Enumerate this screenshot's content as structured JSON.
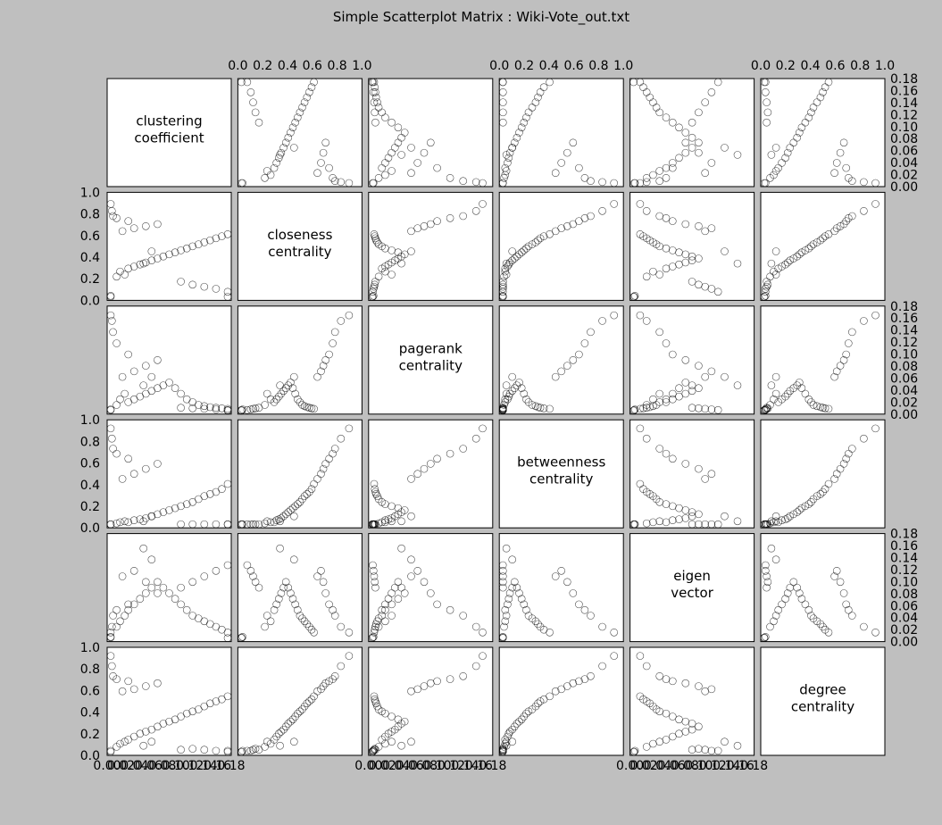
{
  "chart_data": {
    "type": "scatter",
    "layout": "scatterplot-matrix",
    "title": "Simple Scatterplot Matrix : Wiki-Vote_out.txt",
    "variables": [
      {
        "key": "clustering",
        "label_lines": [
          "clustering",
          "coefficient"
        ],
        "range": [
          0.0,
          1.0
        ]
      },
      {
        "key": "closeness",
        "label_lines": [
          "closeness",
          "centrality"
        ],
        "range": [
          0.0,
          1.0
        ]
      },
      {
        "key": "pagerank",
        "label_lines": [
          "pagerank",
          "centrality"
        ],
        "range": [
          0.0,
          0.18
        ]
      },
      {
        "key": "betweenness",
        "label_lines": [
          "betweenness",
          "centrality"
        ],
        "range": [
          0.0,
          1.0
        ]
      },
      {
        "key": "eigen",
        "label_lines": [
          "eigen",
          "vector"
        ],
        "range": [
          0.0,
          0.18
        ]
      },
      {
        "key": "degree",
        "label_lines": [
          "degree",
          "centrality"
        ],
        "range": [
          0.0,
          1.0
        ]
      }
    ],
    "tick_labels": {
      "unit": [
        "0.0",
        "0.2",
        "0.4",
        "0.6",
        "0.8",
        "1.0"
      ],
      "unit_top": [
        "0.0",
        "0.2",
        "0.4",
        "0.6",
        "0.8",
        "1.0"
      ],
      "small": [
        "0.00",
        "0.02",
        "0.04",
        "0.06",
        "0.08",
        "0.10",
        "0.12",
        "0.14",
        "0.16",
        "0.18"
      ],
      "small_bottom": [
        "0.00",
        "0.02",
        "0.04",
        "0.06",
        "0.08",
        "0.10",
        "0.12",
        "0.14",
        "0.16",
        "0.18"
      ]
    },
    "marker": "open-circle",
    "grid": false,
    "points": [
      [
        0.05,
        0.2,
        0.01,
        0.01,
        0.02,
        0.05
      ],
      [
        0.08,
        0.25,
        0.02,
        0.02,
        0.03,
        0.08
      ],
      [
        0.12,
        0.22,
        0.03,
        0.03,
        0.04,
        0.1
      ],
      [
        0.15,
        0.28,
        0.015,
        0.02,
        0.05,
        0.12
      ],
      [
        0.2,
        0.3,
        0.02,
        0.04,
        0.06,
        0.15
      ],
      [
        0.25,
        0.32,
        0.025,
        0.05,
        0.07,
        0.18
      ],
      [
        0.3,
        0.34,
        0.03,
        0.06,
        0.08,
        0.2
      ],
      [
        0.35,
        0.36,
        0.035,
        0.08,
        0.09,
        0.22
      ],
      [
        0.4,
        0.38,
        0.04,
        0.1,
        0.1,
        0.25
      ],
      [
        0.45,
        0.4,
        0.045,
        0.12,
        0.09,
        0.28
      ],
      [
        0.5,
        0.42,
        0.05,
        0.14,
        0.08,
        0.3
      ],
      [
        0.55,
        0.44,
        0.04,
        0.16,
        0.07,
        0.32
      ],
      [
        0.6,
        0.46,
        0.03,
        0.18,
        0.06,
        0.35
      ],
      [
        0.65,
        0.48,
        0.02,
        0.2,
        0.05,
        0.38
      ],
      [
        0.7,
        0.5,
        0.015,
        0.22,
        0.04,
        0.4
      ],
      [
        0.75,
        0.52,
        0.01,
        0.25,
        0.035,
        0.42
      ],
      [
        0.8,
        0.54,
        0.008,
        0.28,
        0.03,
        0.45
      ],
      [
        0.85,
        0.56,
        0.006,
        0.3,
        0.025,
        0.48
      ],
      [
        0.9,
        0.58,
        0.005,
        0.32,
        0.02,
        0.5
      ],
      [
        0.95,
        0.6,
        0.004,
        0.35,
        0.015,
        0.52
      ],
      [
        1.0,
        0.62,
        0.003,
        0.4,
        0.01,
        0.55
      ],
      [
        0.1,
        0.65,
        0.06,
        0.45,
        0.11,
        0.6
      ],
      [
        0.2,
        0.68,
        0.07,
        0.5,
        0.12,
        0.62
      ],
      [
        0.3,
        0.7,
        0.08,
        0.55,
        0.1,
        0.65
      ],
      [
        0.4,
        0.72,
        0.09,
        0.6,
        0.08,
        0.68
      ],
      [
        0.15,
        0.75,
        0.1,
        0.65,
        0.06,
        0.7
      ],
      [
        0.05,
        0.78,
        0.12,
        0.7,
        0.05,
        0.72
      ],
      [
        0.02,
        0.8,
        0.14,
        0.75,
        0.04,
        0.75
      ],
      [
        0.01,
        0.85,
        0.16,
        0.85,
        0.02,
        0.85
      ],
      [
        0.0,
        0.92,
        0.17,
        0.95,
        0.01,
        0.95
      ],
      [
        0.6,
        0.15,
        0.005,
        0.001,
        0.09,
        0.02
      ],
      [
        0.7,
        0.12,
        0.004,
        0.001,
        0.1,
        0.03
      ],
      [
        0.8,
        0.1,
        0.003,
        0.001,
        0.11,
        0.02
      ],
      [
        0.9,
        0.08,
        0.002,
        0.001,
        0.12,
        0.01
      ],
      [
        1.0,
        0.05,
        0.001,
        0.0,
        0.13,
        0.01
      ],
      [
        0.0,
        0.0,
        0.001,
        0.0,
        0.001,
        0.0
      ],
      [
        0.0,
        0.01,
        0.002,
        0.0,
        0.002,
        0.01
      ],
      [
        1.0,
        0.0,
        0.0,
        0.0,
        0.0,
        0.0
      ],
      [
        0.35,
        0.45,
        0.06,
        0.08,
        0.14,
        0.1
      ],
      [
        0.28,
        0.33,
        0.045,
        0.03,
        0.16,
        0.06
      ]
    ]
  }
}
